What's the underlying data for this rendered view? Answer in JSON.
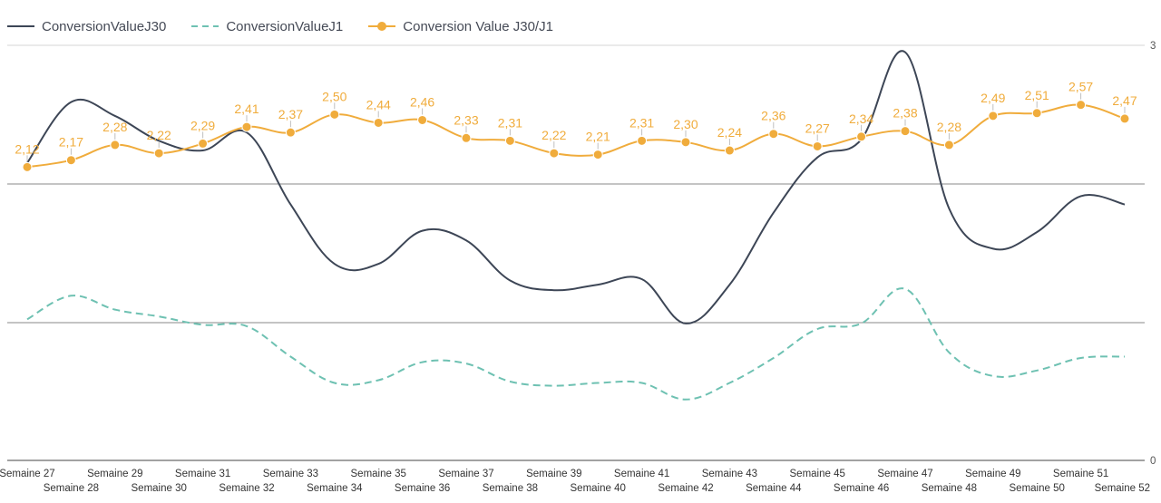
{
  "chart_data": {
    "type": "line",
    "categories": [
      "Semaine 27",
      "Semaine 28",
      "Semaine 29",
      "Semaine 30",
      "Semaine 31",
      "Semaine 32",
      "Semaine 33",
      "Semaine 34",
      "Semaine 35",
      "Semaine 36",
      "Semaine 37",
      "Semaine 38",
      "Semaine 39",
      "Semaine 40",
      "Semaine 41",
      "Semaine 42",
      "Semaine 43",
      "Semaine 44",
      "Semaine 45",
      "Semaine 46",
      "Semaine 47",
      "Semaine 48",
      "Semaine 49",
      "Semaine 50",
      "Semaine 51",
      "Semaine 52"
    ],
    "series": [
      {
        "name": "ConversionValueJ30",
        "color": "#3d4656",
        "style": "solid",
        "values": [
          2.15,
          2.59,
          2.49,
          2.31,
          2.24,
          2.37,
          1.85,
          1.42,
          1.42,
          1.66,
          1.59,
          1.3,
          1.23,
          1.27,
          1.31,
          0.99,
          1.27,
          1.79,
          2.19,
          2.32,
          2.95,
          1.82,
          1.53,
          1.65,
          1.91,
          1.85
        ]
      },
      {
        "name": "ConversionValueJ1",
        "color": "#6ec1b2",
        "style": "dashed",
        "values": [
          1.02,
          1.19,
          1.09,
          1.04,
          0.98,
          0.97,
          0.75,
          0.56,
          0.58,
          0.71,
          0.7,
          0.57,
          0.54,
          0.56,
          0.56,
          0.44,
          0.56,
          0.74,
          0.95,
          0.99,
          1.24,
          0.78,
          0.61,
          0.65,
          0.74,
          0.75
        ]
      },
      {
        "name": "Conversion Value J30/J1",
        "color": "#f0ac3c",
        "style": "solid-markers",
        "values": [
          2.12,
          2.17,
          2.28,
          2.22,
          2.29,
          2.41,
          2.37,
          2.5,
          2.44,
          2.46,
          2.33,
          2.31,
          2.22,
          2.21,
          2.31,
          2.3,
          2.24,
          2.36,
          2.27,
          2.34,
          2.38,
          2.28,
          2.49,
          2.51,
          2.57,
          2.47
        ]
      }
    ],
    "data_labels": [
      "2,12",
      "2,17",
      "2,28",
      "2,22",
      "2,29",
      "2,41",
      "2,37",
      "2,50",
      "2,44",
      "2,46",
      "2,33",
      "2,31",
      "2,22",
      "2,21",
      "2,31",
      "2,30",
      "2,24",
      "2,36",
      "2,27",
      "2,34",
      "2,38",
      "2,28",
      "2,49",
      "2,51",
      "2,57",
      "2,47"
    ],
    "right_axis_ticks": [
      "3",
      "0"
    ],
    "ylim": [
      0,
      3
    ],
    "grid": true,
    "legend_position": "top-left"
  }
}
